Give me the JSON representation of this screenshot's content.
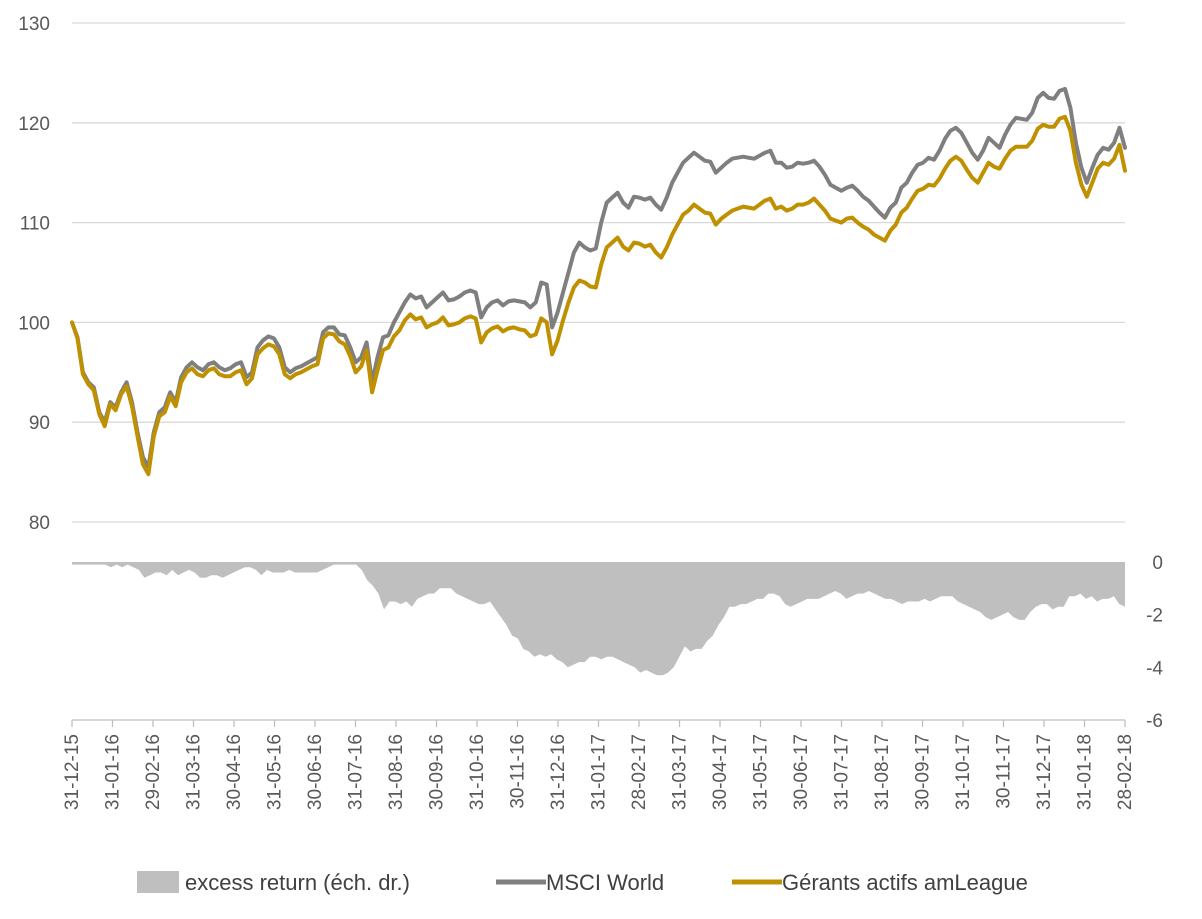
{
  "chart_data": {
    "type": "line",
    "title": "",
    "colors": {
      "msci": "#7f7f7f",
      "gerants": "#bf9000",
      "excess": "#bfbfbf",
      "grid": "#d9d9d9",
      "axis": "#bfbfbf",
      "text": "#595959"
    },
    "left_axis": {
      "min": 80,
      "max": 130,
      "ticks": [
        "80",
        "90",
        "100",
        "110",
        "120",
        "130"
      ]
    },
    "right_axis": {
      "min": -6,
      "max": 0,
      "ticks": [
        "0",
        "-2",
        "-4",
        "-6"
      ]
    },
    "x_axis": {
      "ticks": [
        "31-12-15",
        "31-01-16",
        "29-02-16",
        "31-03-16",
        "30-04-16",
        "31-05-16",
        "30-06-16",
        "31-07-16",
        "31-08-16",
        "30-09-16",
        "31-10-16",
        "30-11-16",
        "31-12-16",
        "31-01-17",
        "28-02-17",
        "31-03-17",
        "30-04-17",
        "31-05-17",
        "30-06-17",
        "31-07-17",
        "31-08-17",
        "30-09-17",
        "31-10-17",
        "30-11-17",
        "31-12-17",
        "31-01-18",
        "28-02-18"
      ]
    },
    "legend": {
      "position": "bottom",
      "items": [
        {
          "label": "excess return (éch. dr.)",
          "kind": "area"
        },
        {
          "label": "MSCI World",
          "kind": "line"
        },
        {
          "label": "Gérants actifs amLeague",
          "kind": "line"
        }
      ]
    },
    "series": [
      {
        "name": "MSCI World",
        "axis": "left",
        "values": [
          100,
          98.5,
          95,
          94,
          93.5,
          91,
          90,
          92,
          91.5,
          93,
          94,
          92,
          89,
          86.5,
          85.5,
          89,
          91,
          91.5,
          93,
          92,
          94.5,
          95.5,
          96,
          95.5,
          95.2,
          95.8,
          96,
          95.5,
          95.2,
          95.4,
          95.8,
          96,
          94.5,
          95,
          97.5,
          98.2,
          98.6,
          98.4,
          97.5,
          95.5,
          95,
          95.4,
          95.6,
          95.9,
          96.2,
          96.5,
          99,
          99.5,
          99.5,
          98.8,
          98.7,
          97.5,
          96,
          96.5,
          98,
          94,
          96.5,
          98.5,
          98.7,
          100,
          101,
          102,
          102.8,
          102.4,
          102.6,
          101.5,
          102,
          102.5,
          103,
          102.2,
          102.3,
          102.6,
          103,
          103.2,
          103,
          100.5,
          101.5,
          102,
          102.2,
          101.7,
          102.1,
          102.2,
          102.1,
          102,
          101.5,
          102,
          104,
          103.8,
          99.5,
          101,
          103,
          105,
          107,
          108,
          107.5,
          107.2,
          107.4,
          110,
          112,
          112.5,
          113,
          112,
          111.5,
          112.6,
          112.5,
          112.3,
          112.5,
          111.8,
          111.3,
          112.5,
          114,
          115,
          116,
          116.5,
          117,
          116.6,
          116.2,
          116.1,
          115,
          115.5,
          116,
          116.4,
          116.5,
          116.6,
          116.5,
          116.4,
          116.7,
          117,
          117.2,
          116,
          116,
          115.5,
          115.6,
          116,
          115.9,
          116,
          116.2,
          115.6,
          114.8,
          113.8,
          113.5,
          113.2,
          113.5,
          113.7,
          113.2,
          112.6,
          112.2,
          111.6,
          111,
          110.5,
          111.5,
          112,
          113.5,
          114,
          115,
          115.8,
          116,
          116.5,
          116.3,
          117.2,
          118.4,
          119.2,
          119.5,
          119,
          118,
          117,
          116.3,
          117.2,
          118.5,
          118,
          117.5,
          118.8,
          119.8,
          120.5,
          120.4,
          120.3,
          121,
          122.5,
          123,
          122.5,
          122.4,
          123.2,
          123.4,
          121.5,
          118,
          115.5,
          114,
          115.5,
          116.8,
          117.5,
          117.3,
          118,
          119.5,
          117.5
        ]
      },
      {
        "name": "Gérants actifs amLeague",
        "axis": "left",
        "values": [
          100,
          98.4,
          94.8,
          93.8,
          93.2,
          90.8,
          89.6,
          91.8,
          91.2,
          92.8,
          93.6,
          91.6,
          88.6,
          85.8,
          84.8,
          88.6,
          90.6,
          91,
          92.6,
          91.6,
          94,
          95,
          95.4,
          94.8,
          94.6,
          95.2,
          95.4,
          94.8,
          94.6,
          94.6,
          95,
          95.2,
          93.8,
          94.4,
          96.8,
          97.4,
          97.8,
          97.6,
          96.8,
          94.8,
          94.4,
          94.8,
          95,
          95.3,
          95.6,
          95.8,
          98.4,
          98.9,
          98.8,
          98.1,
          97.8,
          96.6,
          95,
          95.6,
          97.2,
          93,
          95.2,
          97.2,
          97.5,
          98.6,
          99.2,
          100.2,
          100.8,
          100.3,
          100.5,
          99.5,
          99.8,
          100,
          100.5,
          99.7,
          99.8,
          100,
          100.4,
          100.6,
          100.4,
          98,
          99,
          99.4,
          99.6,
          99.1,
          99.4,
          99.5,
          99.3,
          99.2,
          98.6,
          98.8,
          100.4,
          100,
          96.8,
          98.2,
          100.2,
          102,
          103.5,
          104.2,
          104,
          103.6,
          103.5,
          105.8,
          107.5,
          108,
          108.5,
          107.6,
          107.2,
          108,
          107.9,
          107.6,
          107.8,
          107,
          106.5,
          107.5,
          108.8,
          109.8,
          110.8,
          111.2,
          111.8,
          111.4,
          111,
          110.9,
          109.8,
          110.4,
          110.8,
          111.2,
          111.4,
          111.6,
          111.5,
          111.4,
          111.8,
          112.2,
          112.4,
          111.4,
          111.6,
          111.2,
          111.4,
          111.8,
          111.8,
          112,
          112.4,
          111.8,
          111.2,
          110.4,
          110.2,
          110,
          110.4,
          110.5,
          110,
          109.6,
          109.3,
          108.8,
          108.5,
          108.2,
          109.2,
          109.8,
          111,
          111.5,
          112.4,
          113.2,
          113.4,
          113.8,
          113.7,
          114.4,
          115.4,
          116.2,
          116.6,
          116.2,
          115.3,
          114.5,
          114,
          115,
          116,
          115.6,
          115.4,
          116.4,
          117.2,
          117.6,
          117.6,
          117.6,
          118.2,
          119.4,
          119.8,
          119.6,
          119.6,
          120.4,
          120.6,
          119.2,
          116,
          113.8,
          112.6,
          114,
          115.4,
          116,
          115.8,
          116.4,
          117.8,
          115.2
        ]
      },
      {
        "name": "excess return (éch. dr.)",
        "axis": "right",
        "values": [
          -0.1,
          -0.1,
          -0.1,
          -0.1,
          -0.1,
          -0.1,
          -0.1,
          -0.2,
          -0.1,
          -0.2,
          -0.1,
          -0.2,
          -0.3,
          -0.6,
          -0.5,
          -0.4,
          -0.4,
          -0.5,
          -0.3,
          -0.5,
          -0.4,
          -0.3,
          -0.4,
          -0.6,
          -0.6,
          -0.5,
          -0.5,
          -0.6,
          -0.5,
          -0.4,
          -0.3,
          -0.2,
          -0.2,
          -0.3,
          -0.5,
          -0.3,
          -0.4,
          -0.4,
          -0.4,
          -0.3,
          -0.4,
          -0.4,
          -0.4,
          -0.4,
          -0.4,
          -0.3,
          -0.2,
          -0.1,
          -0.1,
          -0.1,
          -0.1,
          -0.1,
          -0.3,
          -0.7,
          -0.9,
          -1.2,
          -1.8,
          -1.5,
          -1.5,
          -1.6,
          -1.5,
          -1.7,
          -1.4,
          -1.3,
          -1.2,
          -1.2,
          -1,
          -1,
          -1,
          -1.2,
          -1.3,
          -1.4,
          -1.5,
          -1.6,
          -1.6,
          -1.5,
          -1.8,
          -2.1,
          -2.4,
          -2.8,
          -2.9,
          -3.3,
          -3.4,
          -3.6,
          -3.5,
          -3.6,
          -3.5,
          -3.7,
          -3.8,
          -4,
          -3.9,
          -3.8,
          -3.8,
          -3.6,
          -3.6,
          -3.7,
          -3.6,
          -3.6,
          -3.7,
          -3.8,
          -3.9,
          -4,
          -4.2,
          -4.1,
          -4.2,
          -4.3,
          -4.3,
          -4.2,
          -4,
          -3.6,
          -3.2,
          -3.4,
          -3.3,
          -3.3,
          -3,
          -2.8,
          -2.4,
          -2.1,
          -1.7,
          -1.7,
          -1.6,
          -1.6,
          -1.5,
          -1.4,
          -1.4,
          -1.2,
          -1.2,
          -1.3,
          -1.6,
          -1.7,
          -1.6,
          -1.5,
          -1.4,
          -1.4,
          -1.4,
          -1.3,
          -1.2,
          -1.1,
          -1.2,
          -1.4,
          -1.3,
          -1.2,
          -1.2,
          -1.1,
          -1.2,
          -1.3,
          -1.4,
          -1.4,
          -1.5,
          -1.6,
          -1.5,
          -1.5,
          -1.5,
          -1.4,
          -1.5,
          -1.4,
          -1.3,
          -1.3,
          -1.3,
          -1.5,
          -1.6,
          -1.7,
          -1.8,
          -1.9,
          -2.1,
          -2.2,
          -2.1,
          -2,
          -1.9,
          -2.1,
          -2.2,
          -2.2,
          -1.9,
          -1.7,
          -1.6,
          -1.6,
          -1.8,
          -1.7,
          -1.7,
          -1.3,
          -1.3,
          -1.2,
          -1.4,
          -1.3,
          -1.5,
          -1.4,
          -1.4,
          -1.3,
          -1.6,
          -1.7
        ]
      }
    ]
  }
}
